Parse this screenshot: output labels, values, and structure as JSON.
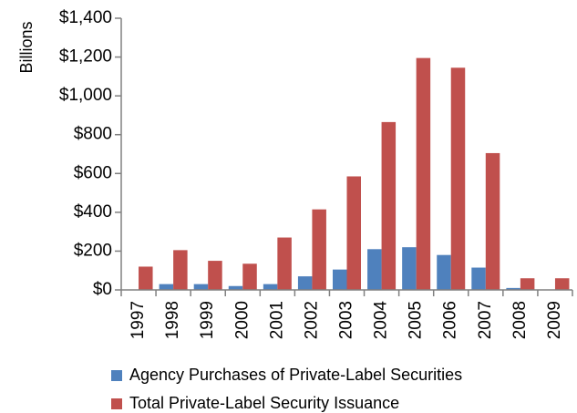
{
  "chart_data": {
    "type": "bar",
    "title": "",
    "xlabel": "",
    "ylabel": "Billions",
    "categories": [
      "1997",
      "1998",
      "1999",
      "2000",
      "2001",
      "2002",
      "2003",
      "2004",
      "2005",
      "2006",
      "2007",
      "2008",
      "2009"
    ],
    "series": [
      {
        "name": "Agency Purchases of Private-Label Securities",
        "color": "#4f81bd",
        "values": [
          0,
          30,
          30,
          20,
          30,
          70,
          105,
          210,
          220,
          180,
          115,
          10,
          0
        ]
      },
      {
        "name": "Total Private-Label Security Issuance",
        "color": "#c0504d",
        "values": [
          120,
          205,
          150,
          135,
          270,
          415,
          585,
          865,
          1195,
          1145,
          705,
          60,
          60
        ]
      }
    ],
    "ylim": [
      0,
      1400
    ],
    "yticks": [
      0,
      200,
      400,
      600,
      800,
      1000,
      1200,
      1400
    ],
    "ytick_labels": [
      "$0",
      "$200",
      "$400",
      "$600",
      "$800",
      "$1,000",
      "$1,200",
      "$1,400"
    ],
    "grid": false,
    "legend": "bottom"
  }
}
